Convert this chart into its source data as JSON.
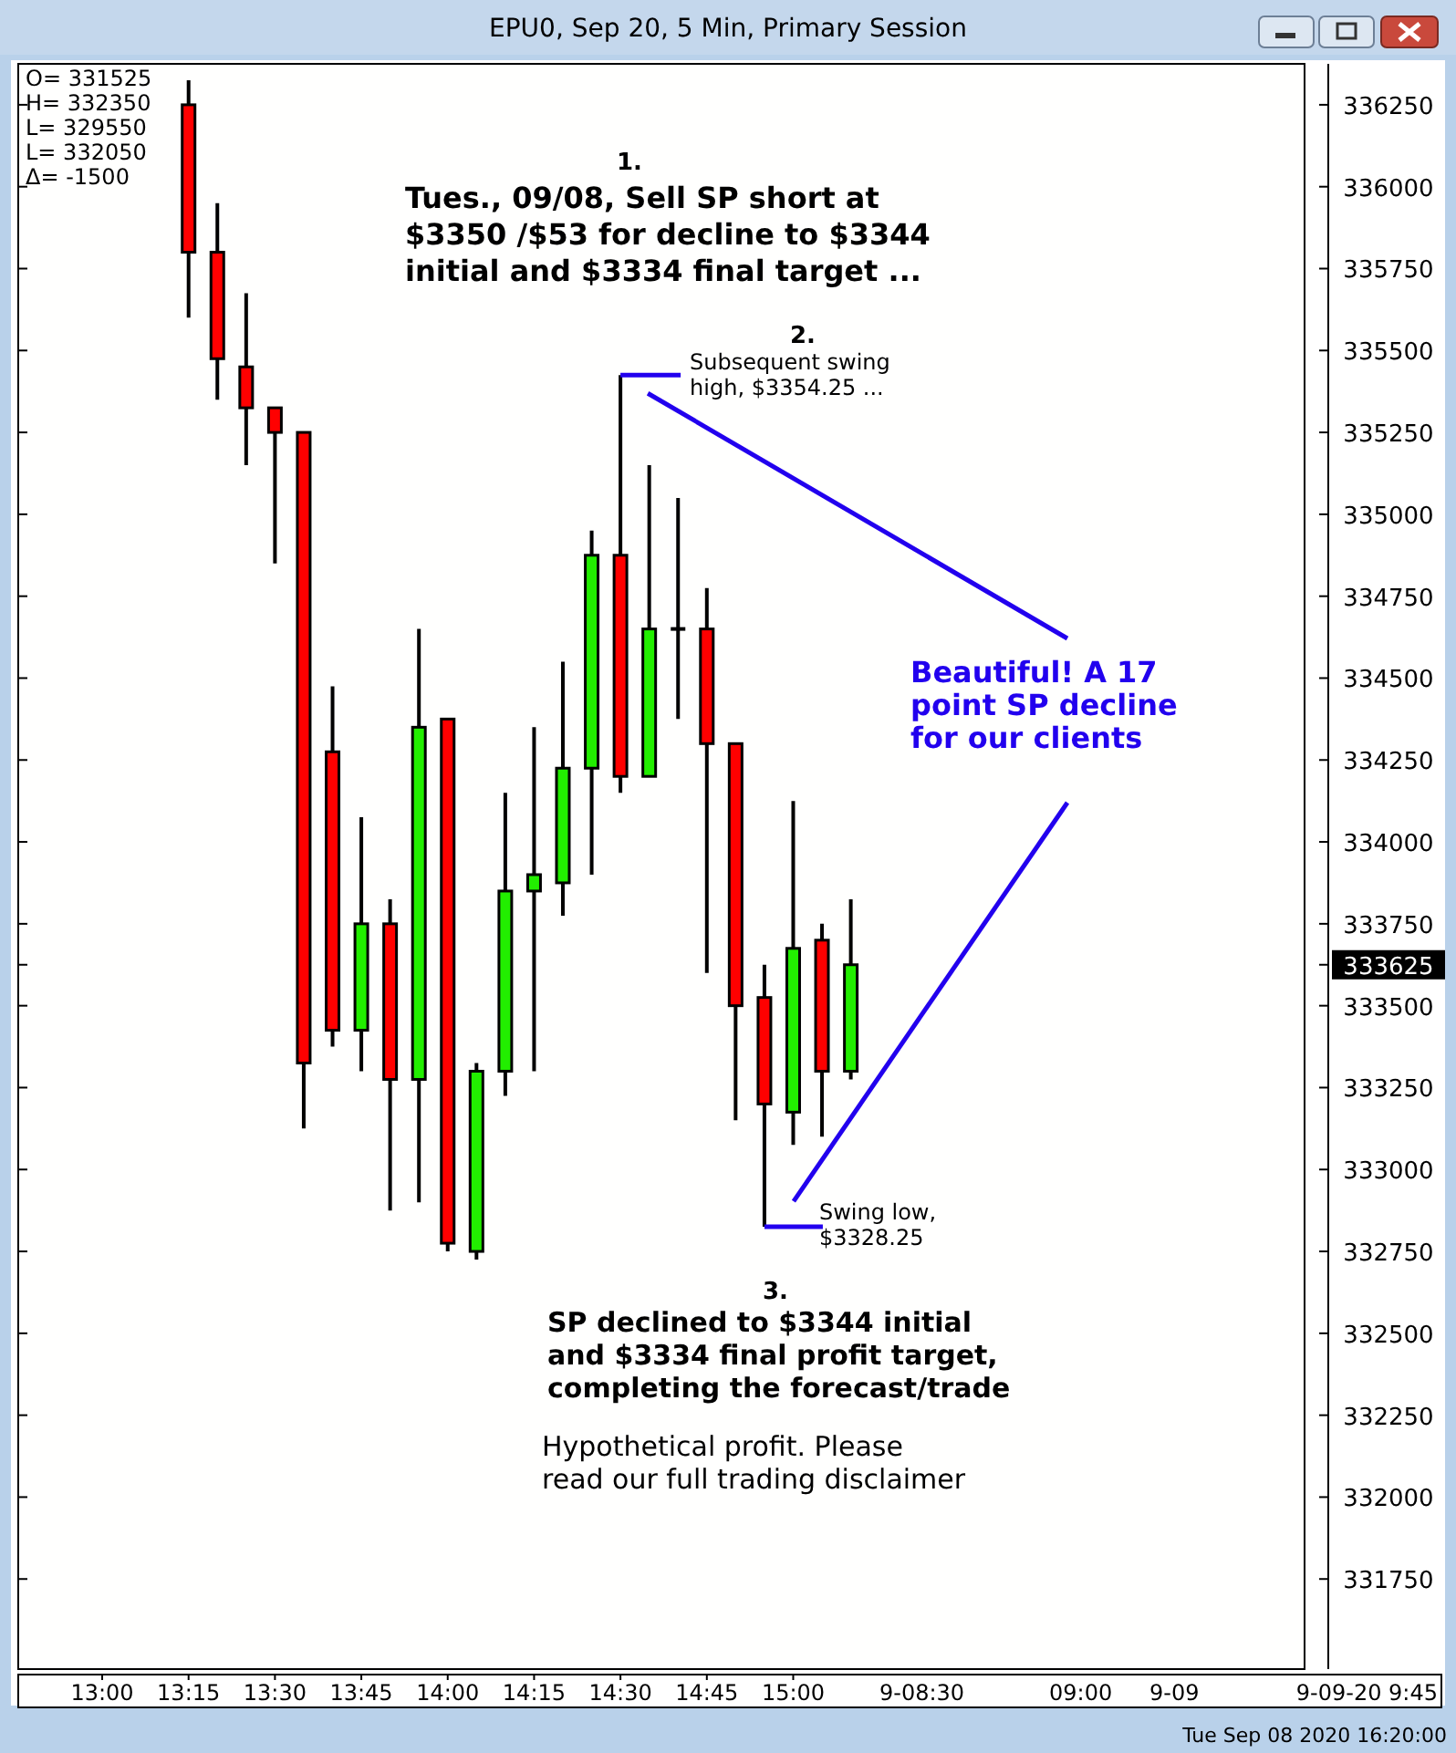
{
  "chart_data": {
    "type": "candlestick",
    "title": "EPU0, Sep 20, 5 Min, Primary Session",
    "x": [
      13.25,
      13.3333,
      13.4167,
      13.5,
      13.5833,
      13.6667,
      13.75,
      13.8333,
      13.9167,
      14,
      14.0833,
      14.1667,
      14.25,
      14.3333,
      14.4167,
      14.5,
      14.5833,
      14.6667,
      14.75,
      14.8333,
      14.9167,
      15,
      15.0833,
      15.1667
    ],
    "ohlc": [
      [
        336250,
        336325,
        335600,
        335800
      ],
      [
        335800,
        335950,
        335350,
        335475
      ],
      [
        335450,
        335675,
        335150,
        335325
      ],
      [
        335325,
        335325,
        334850,
        335250
      ],
      [
        335250,
        335250,
        333125,
        333325
      ],
      [
        334275,
        334475,
        333375,
        333425
      ],
      [
        333425,
        334075,
        333300,
        333750
      ],
      [
        333750,
        333825,
        332875,
        333275
      ],
      [
        333275,
        334650,
        332900,
        334350
      ],
      [
        334375,
        334375,
        332750,
        332775
      ],
      [
        332750,
        333325,
        332725,
        333300
      ],
      [
        333300,
        334150,
        333225,
        333850
      ],
      [
        333850,
        334350,
        333300,
        333900
      ],
      [
        333875,
        334550,
        333775,
        334225
      ],
      [
        334225,
        334950,
        333900,
        334875
      ],
      [
        334875,
        335425,
        334150,
        334200
      ],
      [
        334200,
        335150,
        334200,
        334650
      ],
      [
        334650,
        335050,
        334375,
        334650
      ],
      [
        334650,
        334775,
        333600,
        334300
      ],
      [
        334300,
        334300,
        333150,
        333500
      ],
      [
        333525,
        333625,
        332825,
        333200
      ],
      [
        333175,
        334125,
        333075,
        333675
      ],
      [
        333700,
        333750,
        333100,
        333300
      ],
      [
        333300,
        333825,
        333275,
        333625
      ]
    ],
    "colors": [
      "#ff0000",
      "#ff0000",
      "#ff0000",
      "#ff0000",
      "#ff0000",
      "#ff0000",
      "#22ee00",
      "#ff0000",
      "#22ee00",
      "#ff0000",
      "#22ee00",
      "#22ee00",
      "#22ee00",
      "#22ee00",
      "#22ee00",
      "#ff0000",
      "#22ee00",
      "#000000",
      "#ff0000",
      "#ff0000",
      "#ff0000",
      "#22ee00",
      "#ff0000",
      "#22ee00"
    ],
    "xlim": [
      12.757,
      16.48
    ],
    "xticks": [
      {
        "value": 13,
        "label": "13:00"
      },
      {
        "value": 13.25,
        "label": "13:15"
      },
      {
        "value": 13.5,
        "label": "13:30"
      },
      {
        "value": 13.75,
        "label": "13:45"
      },
      {
        "value": 14,
        "label": "14:00"
      },
      {
        "value": 14.25,
        "label": "14:15"
      },
      {
        "value": 14.5,
        "label": "14:30"
      },
      {
        "value": 14.75,
        "label": "14:45"
      },
      {
        "value": 15,
        "label": "15:00"
      }
    ],
    "ylim": [
      331475,
      336375
    ],
    "yticks": [
      331750,
      332000,
      332250,
      332500,
      332750,
      333000,
      333250,
      333500,
      {
        "value": 333625,
        "label": "333625"
      },
      333750,
      334000,
      334250,
      334500,
      334750,
      335000,
      335250,
      335500,
      335750,
      336000,
      336250
    ],
    "grid": false,
    "annotations": [
      "O=  331525\nH=  332350\nL=  329550\nL=  332050\nΔ=     -1500",
      "1.",
      "Tues., 09/08, Sell SP short at\n$3350 /$53 for decline to $3344\ninitial and $3334 final target ...",
      "2.",
      {
        "text": "Subsequent swing\nhigh, $3354.25 ...",
        "x": 14.5,
        "y": 335425
      },
      "Beautiful! A 17\npoint SP decline\nfor our clients",
      {
        "text": "Swing low,\n$3328.25",
        "x": 14.9167,
        "y": 332825
      },
      "3.",
      "SP declined to $3344 initial\nand $3334 final profit target,\ncompleting the forecast/trade",
      "Hypothetical profit. Please\nread our full trading disclaimer",
      "9-08:30",
      "09:00",
      "9-09",
      "9-09-20   9:45",
      "Tue Sep 08 2020 16:20:00"
    ]
  }
}
